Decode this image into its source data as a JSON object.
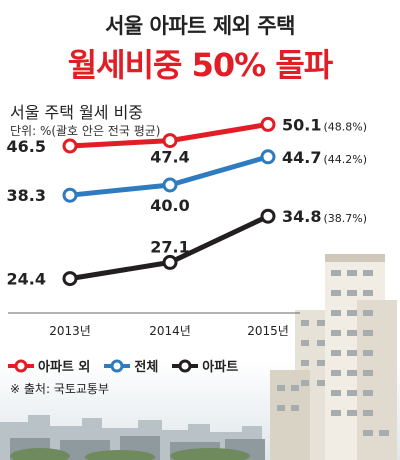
{
  "header": {
    "title": "서울 아파트 제외 주택",
    "headline": "월세비중 50% 돌파"
  },
  "chart_data": {
    "type": "line",
    "title": "서울 주택 월세 비중",
    "subtitle": "단위: %(괄호 안은 전국 평균)",
    "categories": [
      "2013년",
      "2014년",
      "2015년"
    ],
    "ylim": [
      20,
      55
    ],
    "series": [
      {
        "name": "아파트 외",
        "values": [
          46.5,
          47.4,
          50.1
        ],
        "color": "#e11d25",
        "labels": [
          "46.5",
          "47.4",
          "50.1"
        ],
        "national_note": "(48.8%)"
      },
      {
        "name": "전체",
        "values": [
          38.3,
          40.0,
          44.7
        ],
        "color": "#2e7bbf",
        "labels": [
          "38.3",
          "40.0",
          "44.7"
        ],
        "national_note": "(44.2%)"
      },
      {
        "name": "아파트",
        "values": [
          24.4,
          27.1,
          34.8
        ],
        "color": "#231f20",
        "labels": [
          "24.4",
          "27.1",
          "34.8"
        ],
        "national_note": "(38.7%)"
      }
    ],
    "grid": false,
    "legend_position": "bottom-left"
  },
  "source": "※ 출처: 국토교통부",
  "illustration": "apartment-skyline"
}
